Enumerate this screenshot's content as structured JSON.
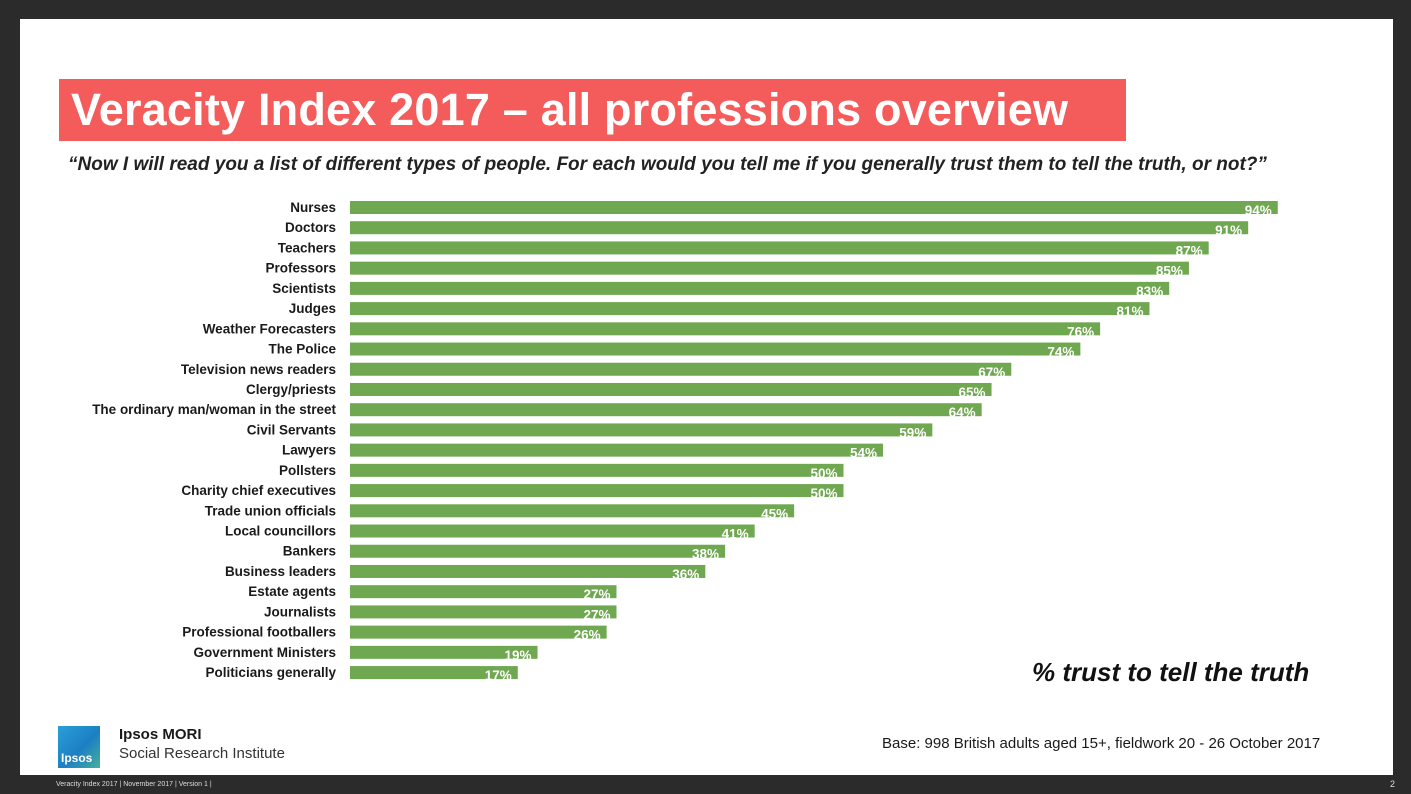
{
  "title": "Veracity Index 2017 – all professions overview",
  "question": "“Now I will read you a list of different types of people. For each would you tell me if you generally trust them to tell the truth, or not?”",
  "chart_data": {
    "type": "bar",
    "orientation": "horizontal",
    "title": "Veracity Index 2017 – all professions overview",
    "measure_label": "% trust to tell the truth",
    "categories": [
      "Nurses",
      "Doctors",
      "Teachers",
      "Professors",
      "Scientists",
      "Judges",
      "Weather Forecasters",
      "The Police",
      "Television news readers",
      "Clergy/priests",
      "The ordinary man/woman in the street",
      "Civil Servants",
      "Lawyers",
      "Pollsters",
      "Charity chief executives",
      "Trade union officials",
      "Local councillors",
      "Bankers",
      "Business leaders",
      "Estate agents",
      "Journalists",
      "Professional footballers",
      "Government Ministers",
      "Politicians generally"
    ],
    "values": [
      94,
      91,
      87,
      85,
      83,
      81,
      76,
      74,
      67,
      65,
      64,
      59,
      54,
      50,
      50,
      45,
      41,
      38,
      36,
      27,
      27,
      26,
      19,
      17
    ],
    "value_suffix": "%",
    "xlim": [
      0,
      100
    ],
    "bar_color": "#70a851",
    "grid": false
  },
  "legend_note": "% trust to tell the truth",
  "brand": {
    "name": "Ipsos MORI",
    "subtitle": "Social Research Institute",
    "logo_text": "Ipsos"
  },
  "base_note": "Base: 998 British adults aged 15+, fieldwork 20 - 26 October 2017",
  "footer": "Veracity Index 2017 | November 2017 | Version 1 |",
  "page_number": "2"
}
